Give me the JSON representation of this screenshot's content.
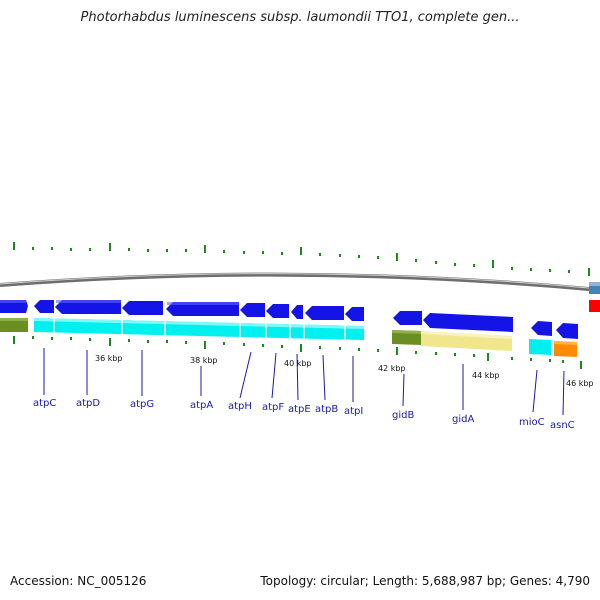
{
  "header": {
    "title": "Photorhabdus luminescens subsp. laumondii TTO1, complete gen..."
  },
  "footer": {
    "accession": "Accession: NC_005126",
    "summary": "Topology: circular; Length: 5,688,987 bp; Genes: 4,790"
  },
  "ruler": {
    "labels": [
      "36 kbp",
      "38 kbp",
      "40 kbp",
      "42 kbp",
      "44 kbp",
      "46 kbp"
    ]
  },
  "genes": [
    "atpC",
    "atpD",
    "atpG",
    "atpA",
    "atpH",
    "atpF",
    "atpE",
    "atpB",
    "atpI",
    "gidB",
    "gidA",
    "mioC",
    "asnC"
  ],
  "colors": {
    "cds": "#1212e0",
    "cds_highlight": "#5a5aff",
    "cog_cyan": "#00f0f0",
    "cog_olive": "#6b8e23",
    "cog_tan": "#f0e68c",
    "cog_orange": "#ff8c00",
    "cog_steelblue": "#4682b4",
    "cog_red": "#ff0000",
    "backbone": "#707070",
    "tick": "#1a8a1a",
    "label": "#1a1aa8"
  }
}
